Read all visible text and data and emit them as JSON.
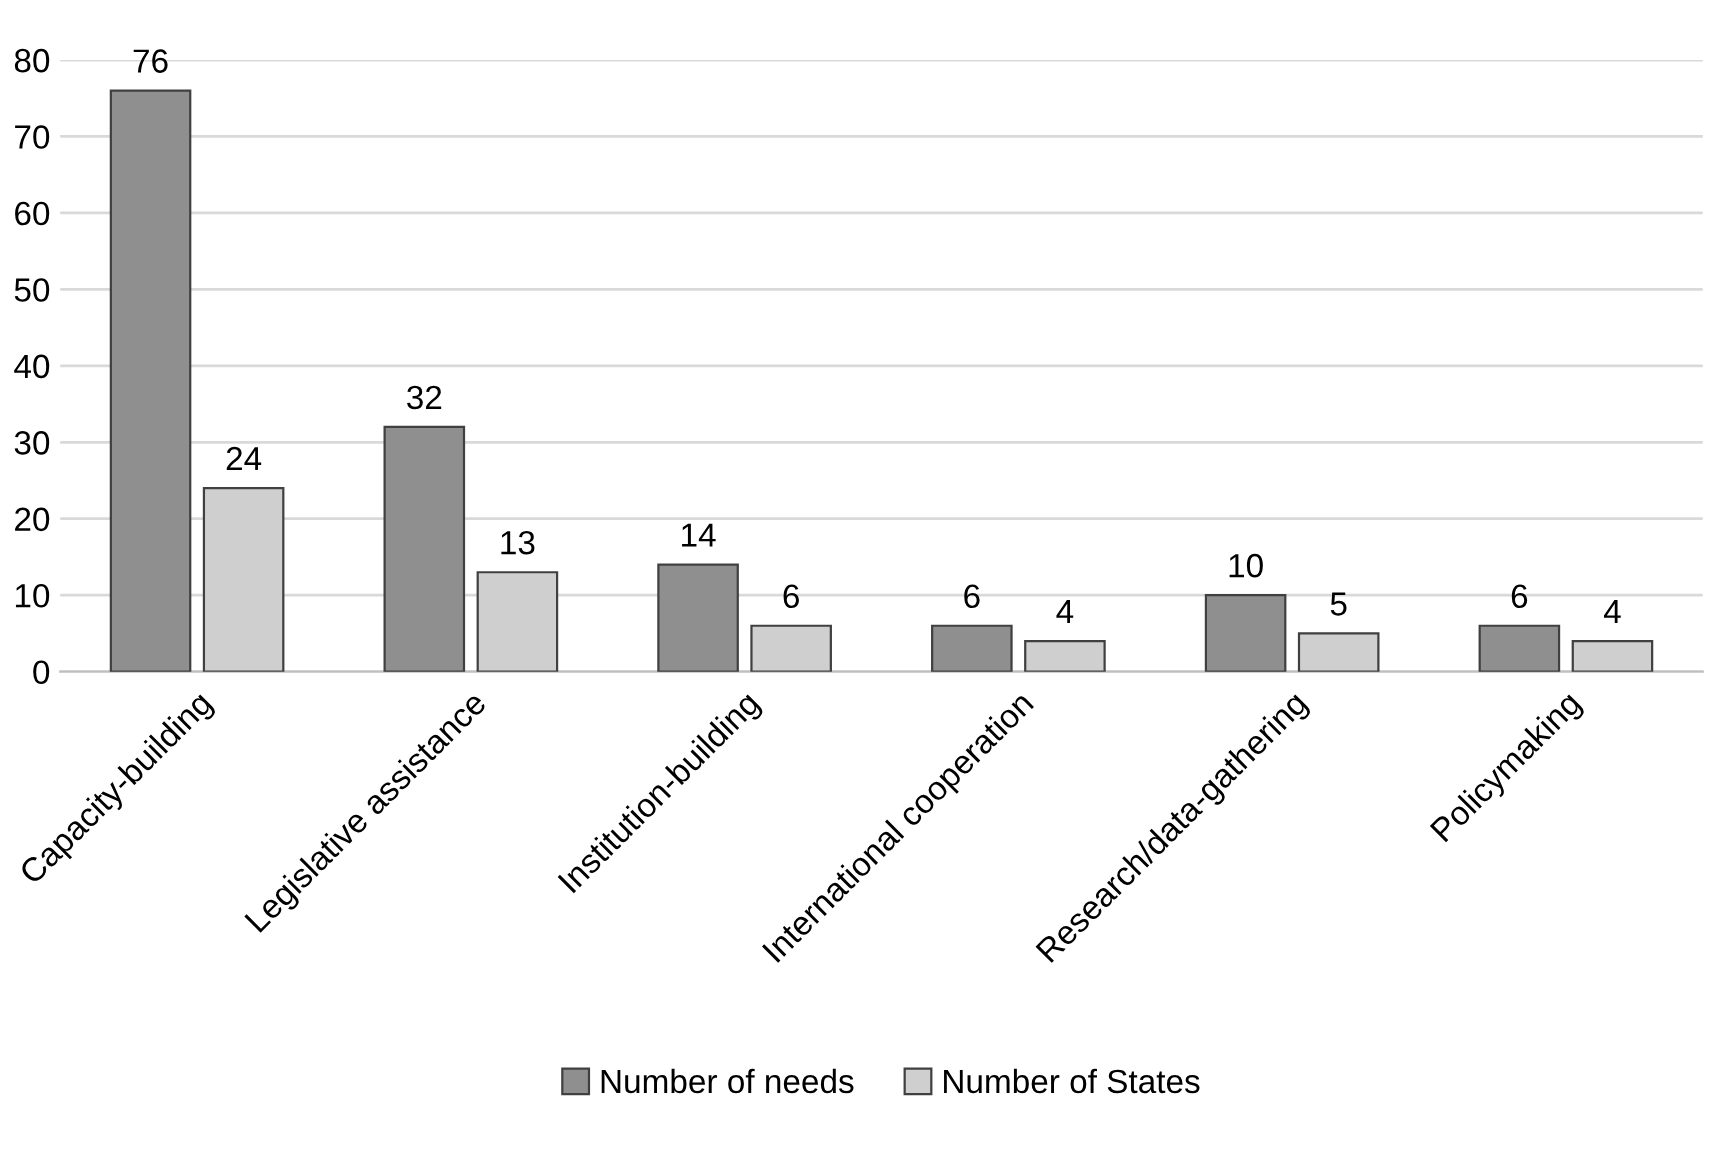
{
  "chart_data": {
    "type": "bar",
    "categories": [
      "Capacity-building",
      "Legislative assistance",
      "Institution-building",
      "International cooperation",
      "Research/data-gathering",
      "Policymaking"
    ],
    "series": [
      {
        "name": "Number of needs",
        "color": "#8f8f8f",
        "values": [
          76,
          32,
          14,
          6,
          10,
          6
        ]
      },
      {
        "name": "Number of States",
        "color": "#cfcfcf",
        "values": [
          24,
          13,
          6,
          4,
          5,
          4
        ]
      }
    ],
    "ylim": [
      0,
      80
    ],
    "yticks": [
      0,
      10,
      20,
      30,
      40,
      50,
      60,
      70,
      80
    ],
    "grid": "y",
    "legend": "bottom",
    "data_labels": true
  }
}
